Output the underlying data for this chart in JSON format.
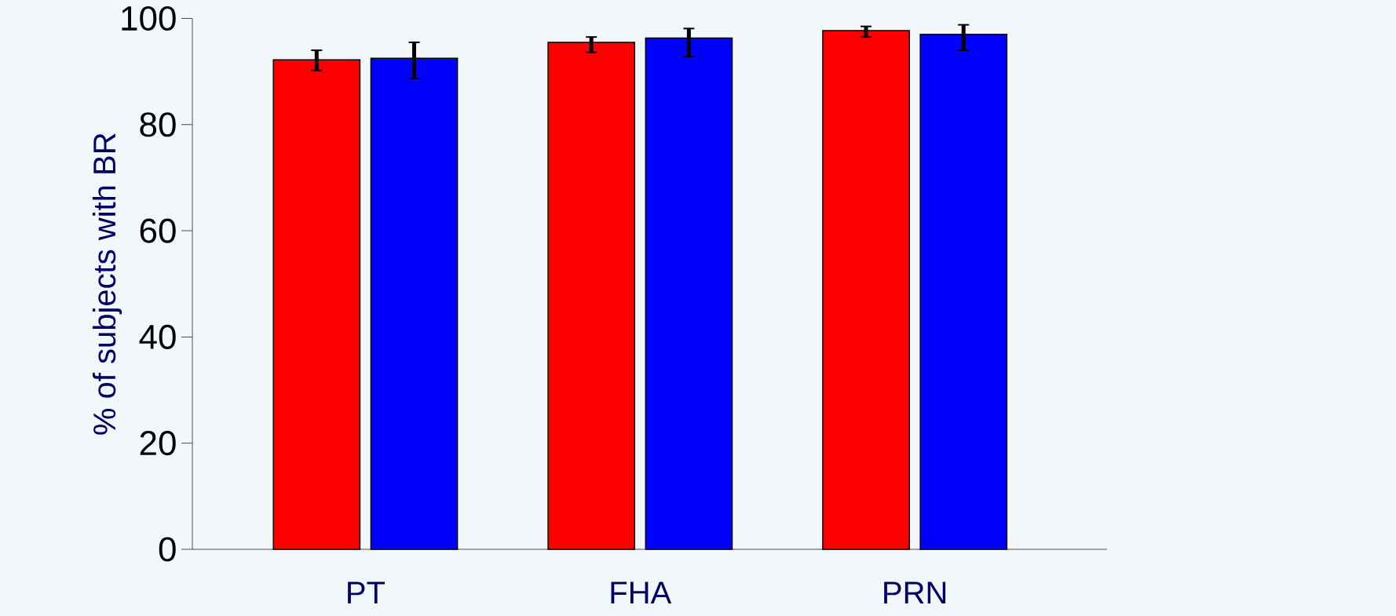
{
  "chart_data": {
    "type": "bar",
    "ylabel": "% of subjects with BR",
    "categories": [
      "PT",
      "FHA",
      "PRN"
    ],
    "series": [
      {
        "color": "#ff0000",
        "values": [
          92.2,
          95.5,
          97.7
        ],
        "errors": [
          [
            90.2,
            94.0
          ],
          [
            93.6,
            96.5
          ],
          [
            96.5,
            98.5
          ]
        ]
      },
      {
        "color": "#0000ff",
        "values": [
          92.5,
          96.3,
          97.0
        ],
        "errors": [
          [
            88.7,
            95.5
          ],
          [
            92.8,
            98.1
          ],
          [
            94.0,
            98.8
          ]
        ]
      }
    ],
    "ylim": [
      0,
      100
    ],
    "yticks": [
      0,
      20,
      40,
      60,
      80,
      100
    ]
  }
}
